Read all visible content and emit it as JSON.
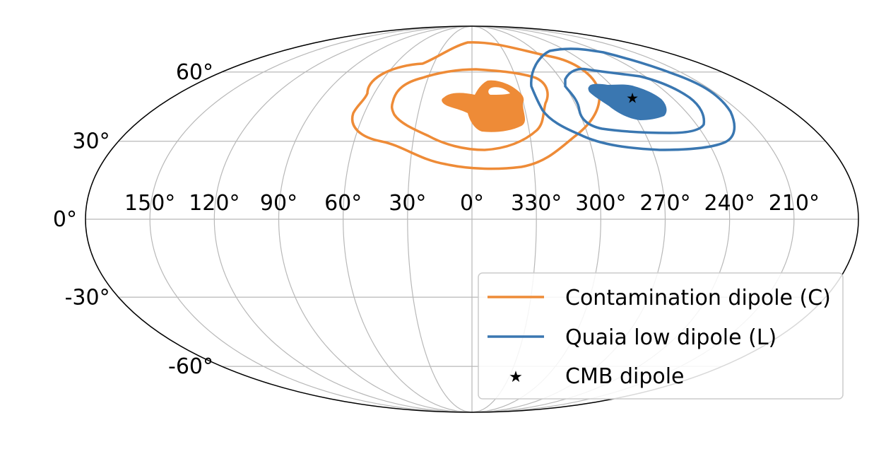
{
  "chart_data": {
    "type": "sky-map",
    "projection": "mollweide",
    "longitude_direction": "increasing-left",
    "grid": true,
    "legend_position": "lower-right",
    "lon_tick_labels": [
      "150°",
      "120°",
      "90°",
      "60°",
      "30°",
      "0°",
      "330°",
      "300°",
      "270°",
      "240°",
      "210°"
    ],
    "lon_ticks_deg": [
      150,
      120,
      90,
      60,
      30,
      0,
      -30,
      -60,
      -90,
      -120,
      -150
    ],
    "lat_tick_labels": [
      "-60°",
      "-30°",
      "0°",
      "30°",
      "60°"
    ],
    "lat_ticks_deg": [
      -60,
      -30,
      0,
      30,
      60
    ],
    "series": [
      {
        "name": "Contamination dipole (C)",
        "color": "#ee8b37",
        "kind": "contours",
        "filled_region_center": {
          "lon": 0,
          "lat": 40
        },
        "outer_contour_lat_range": [
          18,
          62
        ],
        "outer_contour_lon_range": [
          -45,
          45
        ]
      },
      {
        "name": "Quaia low dipole (L)",
        "color": "#3a77b1",
        "kind": "contours",
        "filled_region_center": {
          "lon": -82,
          "lat": 41
        },
        "outer_contour_lat_range": [
          25,
          67
        ],
        "outer_contour_lon_range": [
          -110,
          -30
        ]
      },
      {
        "name": "CMB dipole",
        "color": "#000000",
        "kind": "marker",
        "marker": "star",
        "lon": -96,
        "lat": 48
      }
    ]
  }
}
